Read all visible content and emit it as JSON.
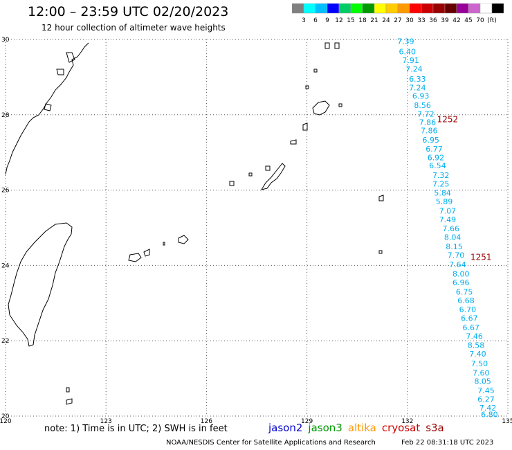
{
  "header": {
    "title": "12:00 – 23:59 UTC 02/20/2023",
    "subtitle": "12 hour collection of altimeter wave heights"
  },
  "colorbar": {
    "colors": [
      "#808080",
      "#00ffff",
      "#00bfff",
      "#0000ff",
      "#00cc66",
      "#00ff00",
      "#009900",
      "#ffff00",
      "#ffcc00",
      "#ff9900",
      "#ff0000",
      "#cc0000",
      "#990000",
      "#660000",
      "#990099",
      "#cc66cc",
      "#ffffff",
      "#000000"
    ],
    "labels": [
      "3",
      "6",
      "9",
      "12",
      "15",
      "18",
      "21",
      "24",
      "27",
      "30",
      "33",
      "36",
      "39",
      "42",
      "45",
      "70",
      "(ft)"
    ]
  },
  "map": {
    "lon_range": [
      120,
      135
    ],
    "lat_range": [
      20,
      30
    ],
    "lon_ticks": [
      "120",
      "123",
      "126",
      "129",
      "132",
      "135"
    ],
    "lat_ticks": [
      "30",
      "28",
      "26",
      "24",
      "22",
      "20"
    ],
    "grid": "dotted"
  },
  "tracks": {
    "color": "#00aeef",
    "ids": [
      {
        "label": "1252",
        "lat": 27.88,
        "lon": 133.2
      },
      {
        "label": "1251",
        "lat": 24.22,
        "lon": 134.2
      }
    ],
    "points": [
      {
        "v": "7.39",
        "lat": 29.95,
        "lon": 131.95
      },
      {
        "v": "6.40",
        "lat": 29.68,
        "lon": 132.0
      },
      {
        "v": "7.91",
        "lat": 29.45,
        "lon": 132.1
      },
      {
        "v": "7.24",
        "lat": 29.22,
        "lon": 132.2
      },
      {
        "v": "6.33",
        "lat": 28.95,
        "lon": 132.3
      },
      {
        "v": "7.24",
        "lat": 28.72,
        "lon": 132.3
      },
      {
        "v": "6.93",
        "lat": 28.5,
        "lon": 132.4
      },
      {
        "v": "8.56",
        "lat": 28.25,
        "lon": 132.45
      },
      {
        "v": "7.72",
        "lat": 28.02,
        "lon": 132.55
      },
      {
        "v": "7.86",
        "lat": 27.8,
        "lon": 132.6
      },
      {
        "v": "7.86",
        "lat": 27.58,
        "lon": 132.65
      },
      {
        "v": "6.95",
        "lat": 27.33,
        "lon": 132.7
      },
      {
        "v": "6.77",
        "lat": 27.1,
        "lon": 132.8
      },
      {
        "v": "6.92",
        "lat": 26.87,
        "lon": 132.85
      },
      {
        "v": "6.54",
        "lat": 26.65,
        "lon": 132.9
      },
      {
        "v": "7.32",
        "lat": 26.4,
        "lon": 133.0
      },
      {
        "v": "7.25",
        "lat": 26.17,
        "lon": 133.0
      },
      {
        "v": "5.84",
        "lat": 25.93,
        "lon": 133.05
      },
      {
        "v": "5.89",
        "lat": 25.7,
        "lon": 133.1
      },
      {
        "v": "7.07",
        "lat": 25.45,
        "lon": 133.2
      },
      {
        "v": "7.49",
        "lat": 25.22,
        "lon": 133.2
      },
      {
        "v": "7.66",
        "lat": 24.98,
        "lon": 133.3
      },
      {
        "v": "8.04",
        "lat": 24.75,
        "lon": 133.35
      },
      {
        "v": "8.15",
        "lat": 24.5,
        "lon": 133.4
      },
      {
        "v": "7.70",
        "lat": 24.27,
        "lon": 133.45
      },
      {
        "v": "7.64",
        "lat": 24.03,
        "lon": 133.5
      },
      {
        "v": "8.00",
        "lat": 23.78,
        "lon": 133.6
      },
      {
        "v": "6.96",
        "lat": 23.55,
        "lon": 133.6
      },
      {
        "v": "6.75",
        "lat": 23.3,
        "lon": 133.7
      },
      {
        "v": "6.68",
        "lat": 23.07,
        "lon": 133.75
      },
      {
        "v": "6.70",
        "lat": 22.83,
        "lon": 133.8
      },
      {
        "v": "6.67",
        "lat": 22.6,
        "lon": 133.85
      },
      {
        "v": "6.67",
        "lat": 22.35,
        "lon": 133.9
      },
      {
        "v": "7.46",
        "lat": 22.12,
        "lon": 134.0
      },
      {
        "v": "8.58",
        "lat": 21.88,
        "lon": 134.05
      },
      {
        "v": "7.40",
        "lat": 21.65,
        "lon": 134.1
      },
      {
        "v": "7.50",
        "lat": 21.4,
        "lon": 134.15
      },
      {
        "v": "7.60",
        "lat": 21.15,
        "lon": 134.2
      },
      {
        "v": "8.05",
        "lat": 20.93,
        "lon": 134.25
      },
      {
        "v": "7.45",
        "lat": 20.68,
        "lon": 134.35
      },
      {
        "v": "6.27",
        "lat": 20.45,
        "lon": 134.35
      },
      {
        "v": "7.42",
        "lat": 20.22,
        "lon": 134.4
      },
      {
        "v": "6.80",
        "lat": 20.05,
        "lon": 134.45
      }
    ]
  },
  "footer": {
    "note": "note:  1) Time is in UTC;  2) SWH is in feet",
    "satellites": [
      {
        "name": "jason2",
        "color": "#0000cc"
      },
      {
        "name": "jason3",
        "color": "#009900"
      },
      {
        "name": "altika",
        "color": "#ff9900"
      },
      {
        "name": "cryosat",
        "color": "#cc0000"
      },
      {
        "name": "s3a",
        "color": "#990000"
      }
    ],
    "credits": "NOAA/NESDIS Center for Satellite Applications and Research",
    "timestamp": "Feb 22 08:31:18 UTC 2023"
  }
}
